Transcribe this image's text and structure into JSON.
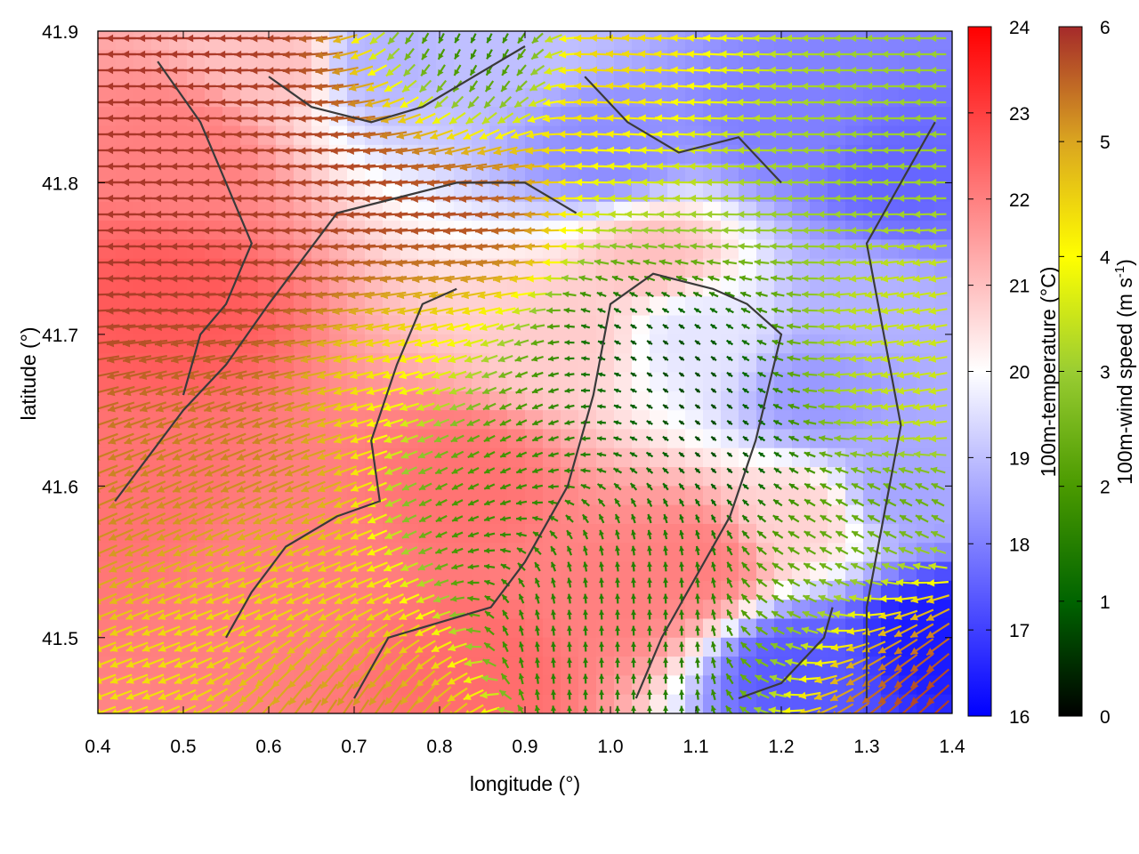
{
  "chart_data": {
    "type": "heatmap",
    "subtype": "temperature field with wind vectors and coastline contours",
    "title": "",
    "xlabel": "longitude (°)",
    "ylabel": "latitude (°)",
    "xlim": [
      0.4,
      1.4
    ],
    "ylim": [
      41.45,
      41.9
    ],
    "x_ticks": [
      "0.4",
      "0.5",
      "0.6",
      "0.7",
      "0.8",
      "0.9",
      "1.0",
      "1.1",
      "1.2",
      "1.3",
      "1.4"
    ],
    "y_ticks": [
      "41.5",
      "41.6",
      "41.7",
      "41.8",
      "41.9"
    ],
    "x_tick_values": [
      0.4,
      0.5,
      0.6,
      0.7,
      0.8,
      0.9,
      1.0,
      1.1,
      1.2,
      1.3,
      1.4
    ],
    "y_tick_values": [
      41.5,
      41.6,
      41.7,
      41.8,
      41.9
    ],
    "grid": false,
    "temperature_colorbar": {
      "label": "100m-temperature (°C)",
      "range": [
        16,
        24
      ],
      "ticks": [
        "16",
        "17",
        "18",
        "19",
        "20",
        "21",
        "22",
        "23",
        "24"
      ],
      "tick_values": [
        16,
        17,
        18,
        19,
        20,
        21,
        22,
        23,
        24
      ],
      "colors": [
        "#0000ff",
        "#ffffff",
        "#ff0000"
      ]
    },
    "wind_colorbar": {
      "label": "100m-wind speed (m s-1)",
      "label_parts": [
        "100m-wind speed (m s",
        "-1",
        ")"
      ],
      "range": [
        0,
        6
      ],
      "ticks": [
        "0",
        "1",
        "2",
        "3",
        "4",
        "5",
        "6"
      ],
      "tick_values": [
        0,
        1,
        2,
        3,
        4,
        5,
        6
      ],
      "colors": [
        "#000000",
        "#006400",
        "#4a9a00",
        "#9acd32",
        "#ffff00",
        "#daa520",
        "#a52a2a"
      ]
    },
    "temperature_regions": [
      {
        "lon": 0.48,
        "lat": 41.72,
        "temp": 22.6
      },
      {
        "lon": 0.45,
        "lat": 41.6,
        "temp": 22.2
      },
      {
        "lon": 0.5,
        "lat": 41.82,
        "temp": 22.0
      },
      {
        "lon": 0.62,
        "lat": 41.55,
        "temp": 22.0
      },
      {
        "lon": 0.83,
        "lat": 41.6,
        "temp": 22.2
      },
      {
        "lon": 0.85,
        "lat": 41.48,
        "temp": 22.3
      },
      {
        "lon": 1.0,
        "lat": 41.53,
        "temp": 22.0
      },
      {
        "lon": 1.1,
        "lat": 41.55,
        "temp": 22.0
      },
      {
        "lon": 0.62,
        "lat": 41.88,
        "temp": 21.0
      },
      {
        "lon": 0.95,
        "lat": 41.7,
        "temp": 20.8
      },
      {
        "lon": 1.05,
        "lat": 41.75,
        "temp": 21.0
      },
      {
        "lon": 1.1,
        "lat": 41.7,
        "temp": 19.6
      },
      {
        "lon": 1.22,
        "lat": 41.58,
        "temp": 20.7
      },
      {
        "lon": 0.72,
        "lat": 41.88,
        "temp": 18.8
      },
      {
        "lon": 0.9,
        "lat": 41.9,
        "temp": 19.0
      },
      {
        "lon": 1.0,
        "lat": 41.82,
        "temp": 18.2
      },
      {
        "lon": 1.2,
        "lat": 41.84,
        "temp": 18.0
      },
      {
        "lon": 1.34,
        "lat": 41.8,
        "temp": 17.6
      },
      {
        "lon": 1.25,
        "lat": 41.66,
        "temp": 18.4
      },
      {
        "lon": 1.34,
        "lat": 41.6,
        "temp": 18.6
      },
      {
        "lon": 1.22,
        "lat": 41.48,
        "temp": 17.4
      },
      {
        "lon": 1.38,
        "lat": 41.5,
        "temp": 16.4
      },
      {
        "lon": 1.3,
        "lat": 41.72,
        "temp": 18.8
      }
    ],
    "wind_flow_zones": [
      {
        "lon": 0.52,
        "lat": 41.76,
        "direction_deg": 180,
        "speed": 5.9,
        "radius": 0.2
      },
      {
        "lon": 0.72,
        "lat": 41.8,
        "direction_deg": 185,
        "speed": 5.7,
        "radius": 0.14
      },
      {
        "lon": 0.52,
        "lat": 41.62,
        "direction_deg": 205,
        "speed": 5.2,
        "radius": 0.14
      },
      {
        "lon": 0.6,
        "lat": 41.5,
        "direction_deg": 200,
        "speed": 4.3,
        "radius": 0.12
      },
      {
        "lon": 0.75,
        "lat": 41.68,
        "direction_deg": 195,
        "speed": 4.0,
        "radius": 0.1
      },
      {
        "lon": 0.9,
        "lat": 41.62,
        "direction_deg": 210,
        "speed": 1.8,
        "radius": 0.12
      },
      {
        "lon": 1.1,
        "lat": 41.66,
        "direction_deg": 140,
        "speed": 0.6,
        "radius": 0.12
      },
      {
        "lon": 1.0,
        "lat": 41.56,
        "direction_deg": 90,
        "speed": 1.5,
        "radius": 0.1
      },
      {
        "lon": 1.15,
        "lat": 41.82,
        "direction_deg": 180,
        "speed": 3.0,
        "radius": 0.14
      },
      {
        "lon": 1.05,
        "lat": 41.86,
        "direction_deg": 175,
        "speed": 4.8,
        "radius": 0.1
      },
      {
        "lon": 0.82,
        "lat": 41.88,
        "direction_deg": 250,
        "speed": 1.2,
        "radius": 0.08
      },
      {
        "lon": 1.3,
        "lat": 41.55,
        "direction_deg": 150,
        "speed": 2.3,
        "radius": 0.1
      },
      {
        "lon": 1.36,
        "lat": 41.5,
        "direction_deg": 225,
        "speed": 6.0,
        "radius": 0.08
      },
      {
        "lon": 1.3,
        "lat": 41.68,
        "direction_deg": 190,
        "speed": 3.5,
        "radius": 0.1
      },
      {
        "lon": 0.65,
        "lat": 41.46,
        "direction_deg": 250,
        "speed": 5.5,
        "radius": 0.08
      }
    ],
    "contours": [
      [
        [
          0.42,
          41.59
        ],
        [
          0.46,
          41.62
        ],
        [
          0.5,
          41.65
        ],
        [
          0.55,
          41.68
        ],
        [
          0.6,
          41.72
        ],
        [
          0.68,
          41.78
        ],
        [
          0.75,
          41.79
        ],
        [
          0.82,
          41.8
        ],
        [
          0.9,
          41.8
        ],
        [
          0.96,
          41.78
        ]
      ],
      [
        [
          0.5,
          41.66
        ],
        [
          0.52,
          41.7
        ],
        [
          0.55,
          41.72
        ],
        [
          0.58,
          41.76
        ],
        [
          0.55,
          41.8
        ],
        [
          0.52,
          41.84
        ],
        [
          0.47,
          41.88
        ]
      ],
      [
        [
          0.55,
          41.5
        ],
        [
          0.58,
          41.53
        ],
        [
          0.62,
          41.56
        ],
        [
          0.68,
          41.58
        ],
        [
          0.73,
          41.59
        ],
        [
          0.72,
          41.63
        ],
        [
          0.75,
          41.68
        ],
        [
          0.78,
          41.72
        ],
        [
          0.82,
          41.73
        ]
      ],
      [
        [
          0.7,
          41.46
        ],
        [
          0.74,
          41.5
        ],
        [
          0.8,
          41.51
        ],
        [
          0.86,
          41.52
        ],
        [
          0.9,
          41.55
        ],
        [
          0.95,
          41.6
        ],
        [
          0.98,
          41.66
        ],
        [
          1.0,
          41.72
        ],
        [
          1.05,
          41.74
        ],
        [
          1.12,
          41.73
        ],
        [
          1.16,
          41.72
        ],
        [
          1.2,
          41.7
        ],
        [
          1.17,
          41.63
        ],
        [
          1.14,
          41.58
        ],
        [
          1.1,
          41.54
        ],
        [
          1.06,
          41.5
        ],
        [
          1.03,
          41.46
        ]
      ],
      [
        [
          1.3,
          41.46
        ],
        [
          1.3,
          41.52
        ],
        [
          1.32,
          41.58
        ],
        [
          1.34,
          41.64
        ],
        [
          1.32,
          41.7
        ],
        [
          1.3,
          41.76
        ],
        [
          1.34,
          41.8
        ],
        [
          1.38,
          41.84
        ]
      ],
      [
        [
          0.97,
          41.87
        ],
        [
          1.02,
          41.84
        ],
        [
          1.08,
          41.82
        ],
        [
          1.15,
          41.83
        ],
        [
          1.2,
          41.8
        ]
      ],
      [
        [
          0.6,
          41.87
        ],
        [
          0.65,
          41.85
        ],
        [
          0.72,
          41.84
        ],
        [
          0.78,
          41.85
        ],
        [
          0.84,
          41.87
        ],
        [
          0.9,
          41.89
        ]
      ],
      [
        [
          1.15,
          41.46
        ],
        [
          1.2,
          41.47
        ],
        [
          1.25,
          41.5
        ],
        [
          1.26,
          41.52
        ]
      ]
    ]
  }
}
